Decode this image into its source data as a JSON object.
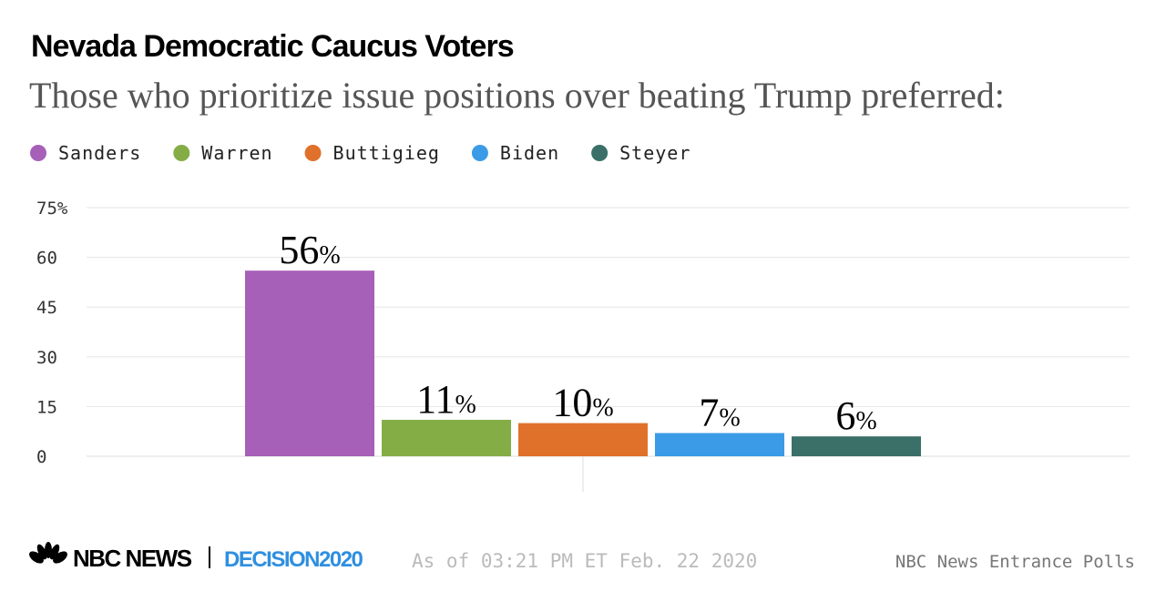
{
  "chart_data": {
    "type": "bar",
    "title": "Nevada Democratic Caucus Voters",
    "subtitle": "Those who prioritize issue positions over beating Trump preferred:",
    "categories": [
      null
    ],
    "series": [
      {
        "name": "Sanders",
        "color": "#a660b8",
        "values": [
          56
        ],
        "value_labels": [
          "56%"
        ]
      },
      {
        "name": "Warren",
        "color": "#84ad46",
        "values": [
          11
        ],
        "value_labels": [
          "11%"
        ]
      },
      {
        "name": "Buttigieg",
        "color": "#e0712a",
        "values": [
          10
        ],
        "value_labels": [
          "10%"
        ]
      },
      {
        "name": "Biden",
        "color": "#3b9be6",
        "values": [
          7
        ],
        "value_labels": [
          "7%"
        ]
      },
      {
        "name": "Steyer",
        "color": "#3b7069",
        "values": [
          6
        ],
        "value_labels": [
          "6%"
        ]
      }
    ],
    "ylim": [
      0,
      75
    ],
    "yticks": [
      0,
      15,
      30,
      45,
      60,
      {
        "value": 75,
        "label": "75%"
      }
    ],
    "grid": true,
    "legend": "top-left",
    "logo": [
      "NBC NEWS",
      "DECISION2020"
    ],
    "note": "As of 03:21 PM ET Feb. 22 2020",
    "source": "NBC News Entrance Polls"
  }
}
